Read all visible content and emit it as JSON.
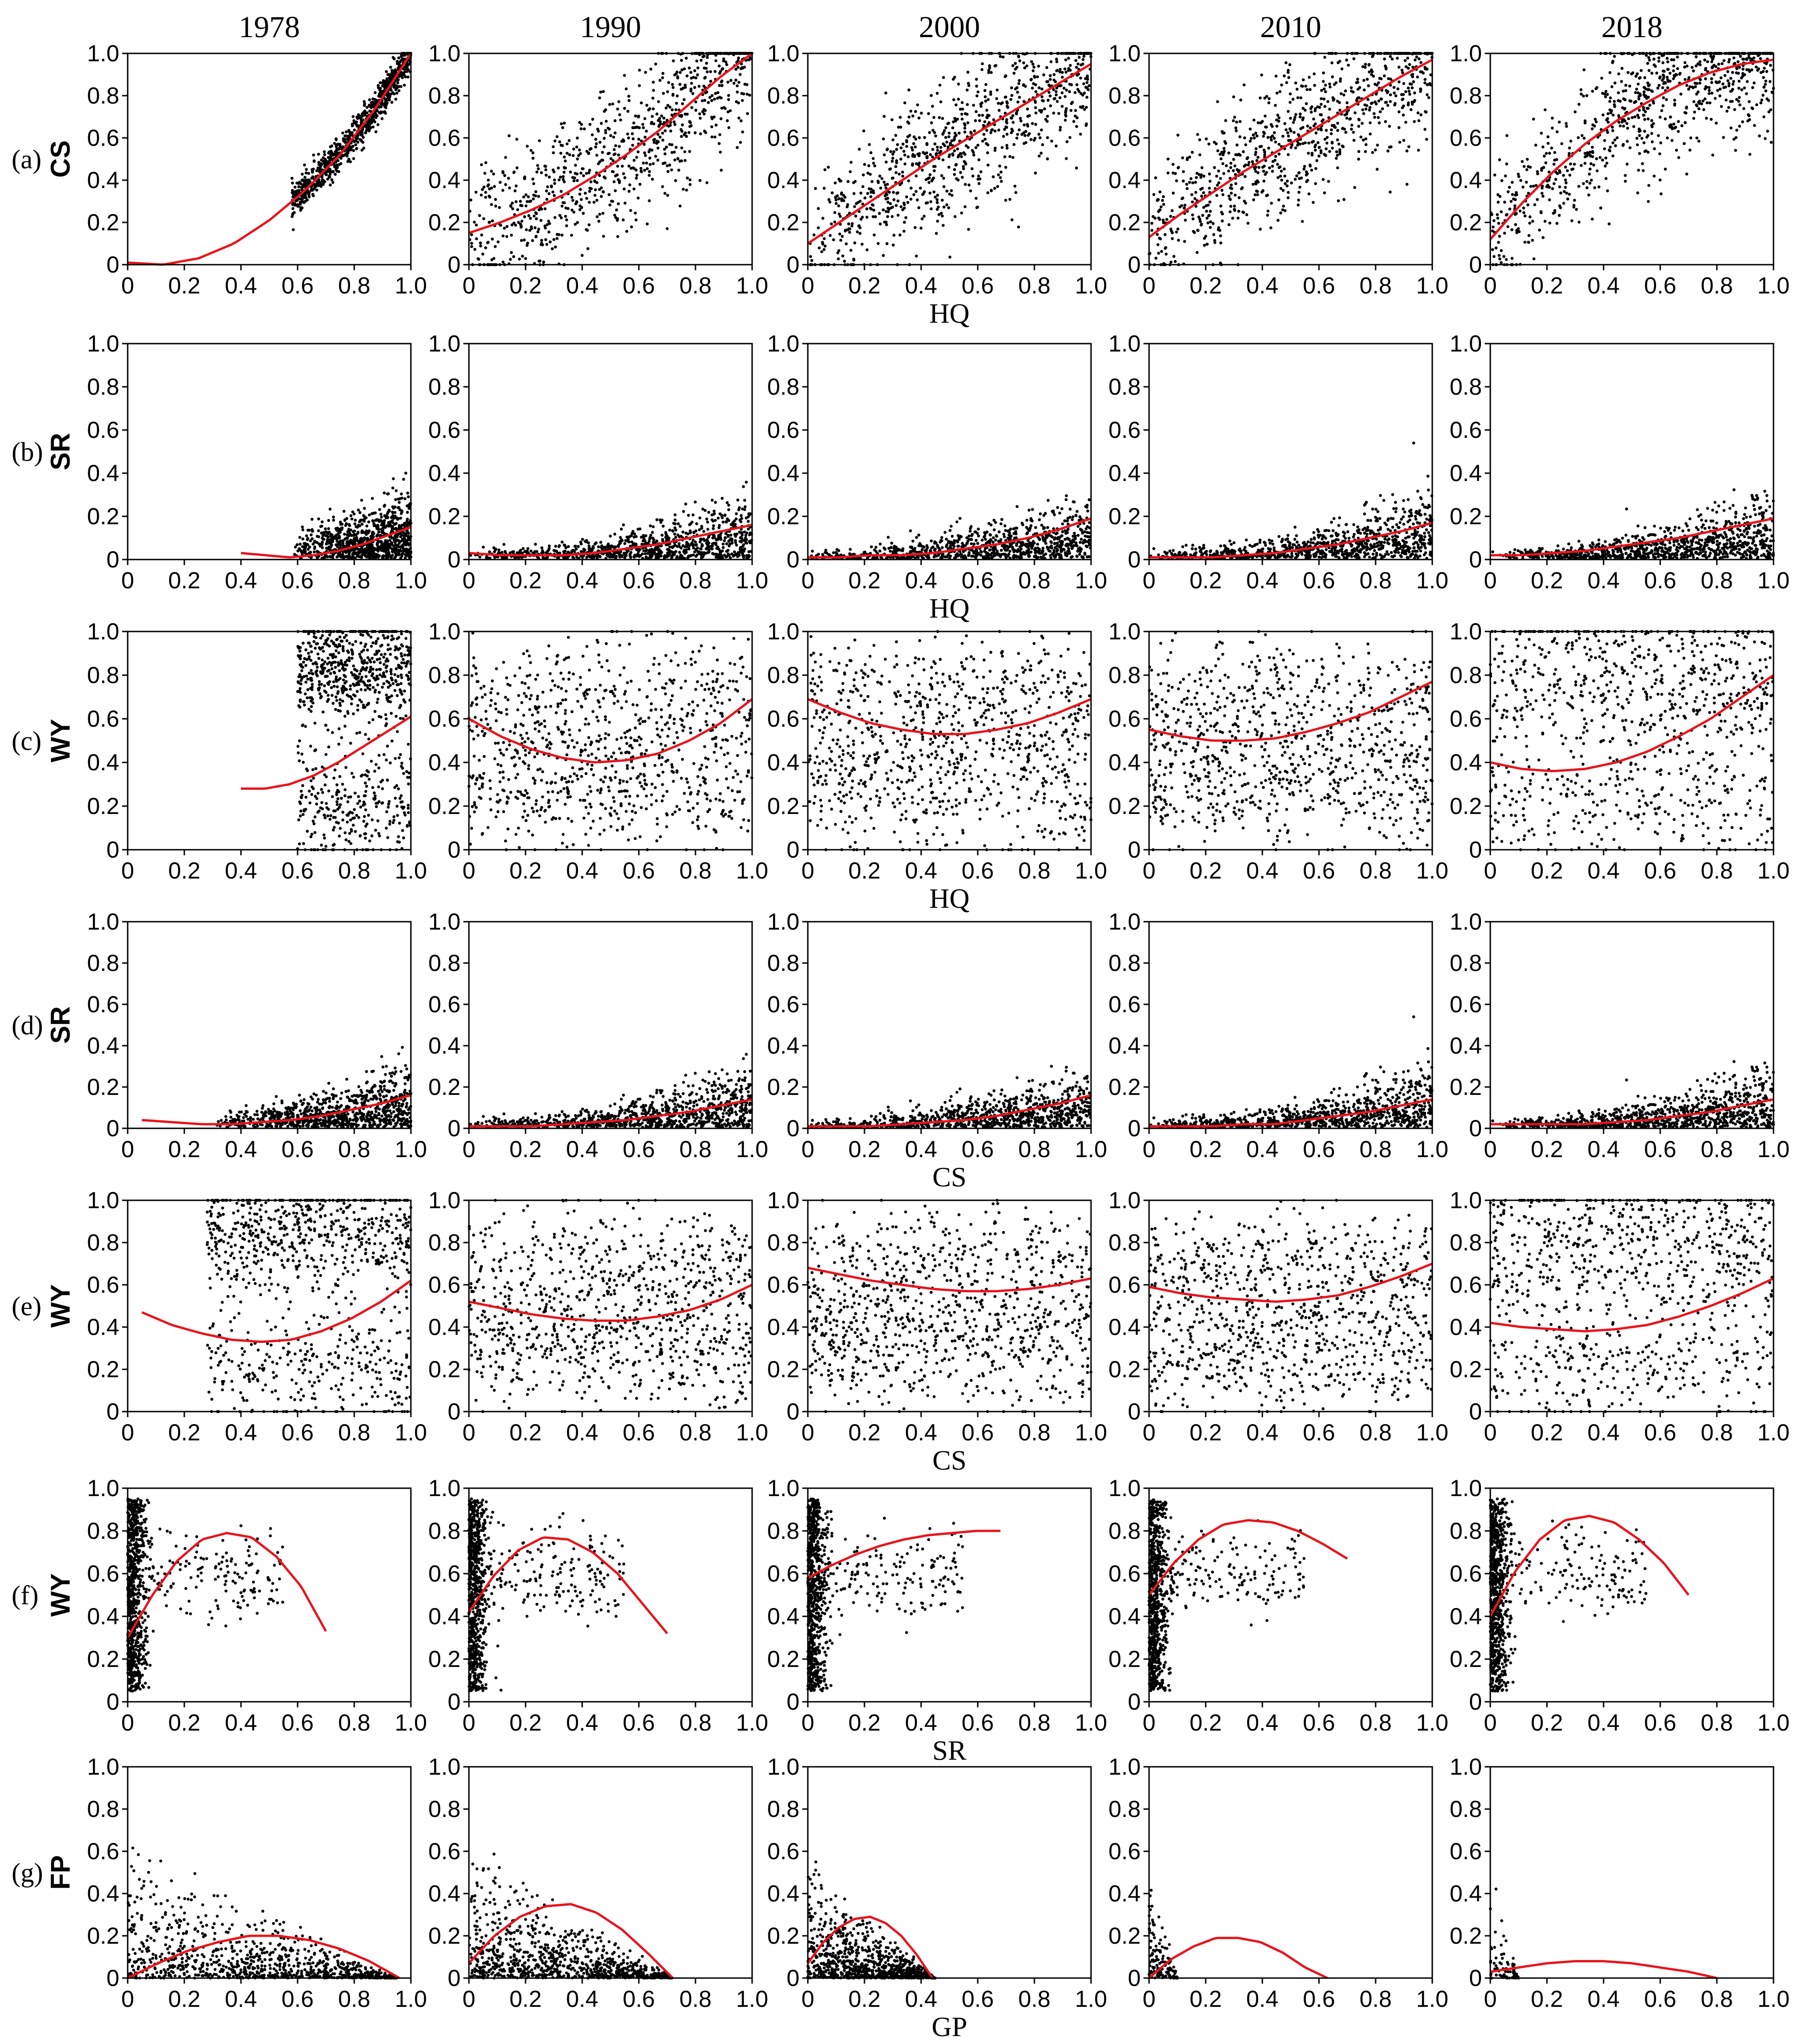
{
  "figure": {
    "years": [
      "1978",
      "1990",
      "2000",
      "2010",
      "2018"
    ],
    "rows": [
      {
        "id": "a",
        "label": "(a)",
        "y": "CS",
        "x": "HQ"
      },
      {
        "id": "b",
        "label": "(b)",
        "y": "SR",
        "x": "HQ"
      },
      {
        "id": "c",
        "label": "(c)",
        "y": "WY",
        "x": "HQ"
      },
      {
        "id": "d",
        "label": "(d)",
        "y": "SR",
        "x": "CS"
      },
      {
        "id": "e",
        "label": "(e)",
        "y": "WY",
        "x": "CS"
      },
      {
        "id": "f",
        "label": "(f)",
        "y": "WY",
        "x": "SR"
      },
      {
        "id": "g",
        "label": "(g)",
        "y": "FP",
        "x": "GP"
      }
    ],
    "tick_labels": [
      "0",
      "0.2",
      "0.4",
      "0.6",
      "0.8",
      "1.0"
    ],
    "colors": {
      "points": "#000000",
      "fit": "#e8141c",
      "axes": "#000000"
    }
  },
  "chart_data": [
    {
      "type": "scatter",
      "panel": "(a) 1978",
      "xlabel": "HQ",
      "ylabel": "CS",
      "xlim": [
        0,
        1
      ],
      "ylim": [
        0,
        1
      ],
      "fit": "quadratic",
      "fit_x": [
        0,
        1
      ],
      "fit_y": [
        0.01,
        0.0,
        0.03,
        0.1,
        0.21,
        0.35,
        0.52,
        0.74,
        1.0
      ],
      "points_note": "dense cluster along fit for HQ 0.6-1.0"
    },
    {
      "type": "scatter",
      "panel": "(a) 1990",
      "xlabel": "HQ",
      "ylabel": "CS",
      "xlim": [
        0,
        1
      ],
      "ylim": [
        0,
        1
      ],
      "fit": "quadratic",
      "fit_x": [
        0,
        1
      ],
      "fit_y": [
        0.15,
        0.2,
        0.26,
        0.33,
        0.42,
        0.52,
        0.63,
        0.76,
        0.89,
        1.0
      ]
    },
    {
      "type": "scatter",
      "panel": "(a) 2000",
      "xlabel": "HQ",
      "ylabel": "CS",
      "xlim": [
        0,
        1
      ],
      "ylim": [
        0,
        1
      ],
      "fit": "quadratic",
      "fit_x": [
        0,
        1
      ],
      "fit_y": [
        0.1,
        0.2,
        0.3,
        0.4,
        0.5,
        0.59,
        0.68,
        0.77,
        0.86,
        0.95
      ]
    },
    {
      "type": "scatter",
      "panel": "(a) 2010",
      "xlabel": "HQ",
      "ylabel": "CS",
      "xlim": [
        0,
        1
      ],
      "ylim": [
        0,
        1
      ],
      "fit": "quadratic",
      "fit_x": [
        0,
        1
      ],
      "fit_y": [
        0.13,
        0.24,
        0.34,
        0.44,
        0.53,
        0.62,
        0.71,
        0.8,
        0.89,
        0.97
      ]
    },
    {
      "type": "scatter",
      "panel": "(a) 2018",
      "xlabel": "HQ",
      "ylabel": "CS",
      "xlim": [
        0,
        1
      ],
      "ylim": [
        0,
        1
      ],
      "fit": "quadratic",
      "fit_x": [
        0,
        1
      ],
      "fit_y": [
        0.12,
        0.29,
        0.44,
        0.57,
        0.68,
        0.77,
        0.85,
        0.91,
        0.95,
        0.97
      ]
    },
    {
      "type": "scatter",
      "panel": "(b) 1978",
      "xlabel": "HQ",
      "ylabel": "SR",
      "xlim": [
        0,
        1
      ],
      "ylim": [
        0,
        1
      ],
      "fit": "quadratic",
      "fit_x": [
        0.4,
        1
      ],
      "fit_y": [
        0.03,
        0.02,
        0.01,
        0.02,
        0.04,
        0.07,
        0.11,
        0.15
      ]
    },
    {
      "type": "scatter",
      "panel": "(b) 1990",
      "xlabel": "HQ",
      "ylabel": "SR",
      "xlim": [
        0,
        1
      ],
      "ylim": [
        0,
        1
      ],
      "fit": "quadratic",
      "fit_x": [
        0,
        1
      ],
      "fit_y": [
        0.03,
        0.02,
        0.02,
        0.02,
        0.03,
        0.05,
        0.07,
        0.1,
        0.13,
        0.16
      ]
    },
    {
      "type": "scatter",
      "panel": "(b) 2000",
      "xlabel": "HQ",
      "ylabel": "SR",
      "xlim": [
        0,
        1
      ],
      "ylim": [
        0,
        1
      ],
      "fit": "quadratic",
      "fit_x": [
        0,
        1
      ],
      "fit_y": [
        0.01,
        0.01,
        0.02,
        0.02,
        0.03,
        0.05,
        0.07,
        0.1,
        0.14,
        0.19
      ]
    },
    {
      "type": "scatter",
      "panel": "(b) 2010",
      "xlabel": "HQ",
      "ylabel": "SR",
      "xlim": [
        0,
        1
      ],
      "ylim": [
        0,
        1
      ],
      "fit": "quadratic",
      "fit_x": [
        0,
        1
      ],
      "fit_y": [
        0.01,
        0.01,
        0.01,
        0.02,
        0.03,
        0.05,
        0.07,
        0.1,
        0.13,
        0.17
      ]
    },
    {
      "type": "scatter",
      "panel": "(b) 2018",
      "xlabel": "HQ",
      "ylabel": "SR",
      "xlim": [
        0,
        1
      ],
      "ylim": [
        0,
        1
      ],
      "fit": "quadratic",
      "fit_x": [
        0,
        1
      ],
      "fit_y": [
        0.02,
        0.02,
        0.03,
        0.04,
        0.06,
        0.08,
        0.1,
        0.13,
        0.16,
        0.19
      ]
    },
    {
      "type": "scatter",
      "panel": "(c) 1978",
      "xlabel": "HQ",
      "ylabel": "WY",
      "xlim": [
        0,
        1
      ],
      "ylim": [
        0,
        1
      ],
      "fit": "quadratic",
      "fit_x": [
        0.4,
        1
      ],
      "fit_y": [
        0.28,
        0.28,
        0.3,
        0.34,
        0.4,
        0.47,
        0.54,
        0.61
      ]
    },
    {
      "type": "scatter",
      "panel": "(c) 1990",
      "xlabel": "HQ",
      "ylabel": "WY",
      "xlim": [
        0,
        1
      ],
      "ylim": [
        0,
        1
      ],
      "fit": "quadratic",
      "fit_x": [
        0,
        1
      ],
      "fit_y": [
        0.6,
        0.52,
        0.46,
        0.42,
        0.4,
        0.41,
        0.44,
        0.5,
        0.58,
        0.69
      ]
    },
    {
      "type": "scatter",
      "panel": "(c) 2000",
      "xlabel": "HQ",
      "ylabel": "WY",
      "xlim": [
        0,
        1
      ],
      "ylim": [
        0,
        1
      ],
      "fit": "quadratic",
      "fit_x": [
        0,
        1
      ],
      "fit_y": [
        0.69,
        0.63,
        0.58,
        0.55,
        0.53,
        0.53,
        0.55,
        0.58,
        0.63,
        0.69
      ]
    },
    {
      "type": "scatter",
      "panel": "(c) 2010",
      "xlabel": "HQ",
      "ylabel": "WY",
      "xlim": [
        0,
        1
      ],
      "ylim": [
        0,
        1
      ],
      "fit": "quadratic",
      "fit_x": [
        0,
        1
      ],
      "fit_y": [
        0.55,
        0.52,
        0.5,
        0.5,
        0.51,
        0.54,
        0.58,
        0.63,
        0.7,
        0.77
      ]
    },
    {
      "type": "scatter",
      "panel": "(c) 2018",
      "xlabel": "HQ",
      "ylabel": "WY",
      "xlim": [
        0,
        1
      ],
      "ylim": [
        0,
        1
      ],
      "fit": "quadratic",
      "fit_x": [
        0,
        1
      ],
      "fit_y": [
        0.4,
        0.37,
        0.36,
        0.37,
        0.4,
        0.45,
        0.52,
        0.6,
        0.7,
        0.8
      ]
    },
    {
      "type": "scatter",
      "panel": "(d) 1978",
      "xlabel": "CS",
      "ylabel": "SR",
      "xlim": [
        0,
        1
      ],
      "ylim": [
        0,
        1
      ],
      "fit": "quadratic",
      "fit_x": [
        0.05,
        1
      ],
      "fit_y": [
        0.04,
        0.03,
        0.02,
        0.02,
        0.03,
        0.04,
        0.06,
        0.09,
        0.12,
        0.16
      ]
    },
    {
      "type": "scatter",
      "panel": "(d) 1990",
      "xlabel": "CS",
      "ylabel": "SR",
      "xlim": [
        0,
        1
      ],
      "ylim": [
        0,
        1
      ],
      "fit": "quadratic",
      "fit_x": [
        0,
        1
      ],
      "fit_y": [
        0.01,
        0.01,
        0.01,
        0.02,
        0.03,
        0.04,
        0.06,
        0.08,
        0.11,
        0.14
      ]
    },
    {
      "type": "scatter",
      "panel": "(d) 2000",
      "xlabel": "CS",
      "ylabel": "SR",
      "xlim": [
        0,
        1
      ],
      "ylim": [
        0,
        1
      ],
      "fit": "quadratic",
      "fit_x": [
        0,
        1
      ],
      "fit_y": [
        0.01,
        0.01,
        0.01,
        0.02,
        0.03,
        0.04,
        0.06,
        0.09,
        0.12,
        0.16
      ]
    },
    {
      "type": "scatter",
      "panel": "(d) 2010",
      "xlabel": "CS",
      "ylabel": "SR",
      "xlim": [
        0,
        1
      ],
      "ylim": [
        0,
        1
      ],
      "fit": "quadratic",
      "fit_x": [
        0,
        1
      ],
      "fit_y": [
        0.01,
        0.01,
        0.01,
        0.02,
        0.02,
        0.04,
        0.06,
        0.08,
        0.11,
        0.14
      ]
    },
    {
      "type": "scatter",
      "panel": "(d) 2018",
      "xlabel": "CS",
      "ylabel": "SR",
      "xlim": [
        0,
        1
      ],
      "ylim": [
        0,
        1
      ],
      "fit": "quadratic",
      "fit_x": [
        0,
        1
      ],
      "fit_y": [
        0.02,
        0.02,
        0.02,
        0.02,
        0.03,
        0.04,
        0.06,
        0.08,
        0.11,
        0.14
      ]
    },
    {
      "type": "scatter",
      "panel": "(e) 1978",
      "xlabel": "CS",
      "ylabel": "WY",
      "xlim": [
        0,
        1
      ],
      "ylim": [
        0,
        1
      ],
      "fit": "quadratic",
      "fit_x": [
        0.05,
        1
      ],
      "fit_y": [
        0.47,
        0.41,
        0.37,
        0.34,
        0.33,
        0.34,
        0.38,
        0.44,
        0.52,
        0.62
      ]
    },
    {
      "type": "scatter",
      "panel": "(e) 1990",
      "xlabel": "CS",
      "ylabel": "WY",
      "xlim": [
        0,
        1
      ],
      "ylim": [
        0,
        1
      ],
      "fit": "quadratic",
      "fit_x": [
        0,
        1
      ],
      "fit_y": [
        0.52,
        0.49,
        0.46,
        0.44,
        0.43,
        0.43,
        0.45,
        0.48,
        0.53,
        0.6
      ]
    },
    {
      "type": "scatter",
      "panel": "(e) 2000",
      "xlabel": "CS",
      "ylabel": "WY",
      "xlim": [
        0,
        1
      ],
      "ylim": [
        0,
        1
      ],
      "fit": "quadratic",
      "fit_x": [
        0,
        1
      ],
      "fit_y": [
        0.68,
        0.65,
        0.62,
        0.6,
        0.58,
        0.57,
        0.57,
        0.58,
        0.6,
        0.63
      ]
    },
    {
      "type": "scatter",
      "panel": "(e) 2010",
      "xlabel": "CS",
      "ylabel": "WY",
      "xlim": [
        0,
        1
      ],
      "ylim": [
        0,
        1
      ],
      "fit": "quadratic",
      "fit_x": [
        0,
        1
      ],
      "fit_y": [
        0.59,
        0.56,
        0.54,
        0.53,
        0.52,
        0.53,
        0.55,
        0.59,
        0.64,
        0.7
      ]
    },
    {
      "type": "scatter",
      "panel": "(e) 2018",
      "xlabel": "CS",
      "ylabel": "WY",
      "xlim": [
        0,
        1
      ],
      "ylim": [
        0,
        1
      ],
      "fit": "quadratic",
      "fit_x": [
        0,
        1
      ],
      "fit_y": [
        0.42,
        0.4,
        0.39,
        0.38,
        0.39,
        0.41,
        0.45,
        0.5,
        0.56,
        0.63
      ]
    },
    {
      "type": "scatter",
      "panel": "(f) 1978",
      "xlabel": "SR",
      "ylabel": "WY",
      "xlim": [
        0,
        1
      ],
      "ylim": [
        0,
        1
      ],
      "fit": "quadratic",
      "fit_x": [
        0,
        0.7
      ],
      "fit_y": [
        0.3,
        0.5,
        0.66,
        0.76,
        0.79,
        0.77,
        0.68,
        0.54,
        0.33
      ]
    },
    {
      "type": "scatter",
      "panel": "(f) 1990",
      "xlabel": "SR",
      "ylabel": "WY",
      "xlim": [
        0,
        1
      ],
      "ylim": [
        0,
        1
      ],
      "fit": "quadratic",
      "fit_x": [
        0,
        0.7
      ],
      "fit_y": [
        0.42,
        0.59,
        0.71,
        0.77,
        0.76,
        0.7,
        0.6,
        0.46,
        0.32
      ]
    },
    {
      "type": "scatter",
      "panel": "(f) 2000",
      "xlabel": "SR",
      "ylabel": "WY",
      "xlim": [
        0,
        1
      ],
      "ylim": [
        0,
        1
      ],
      "fit": "quadratic",
      "fit_x": [
        0,
        0.68
      ],
      "fit_y": [
        0.58,
        0.64,
        0.69,
        0.73,
        0.76,
        0.78,
        0.79,
        0.8,
        0.8
      ]
    },
    {
      "type": "scatter",
      "panel": "(f) 2010",
      "xlabel": "SR",
      "ylabel": "WY",
      "xlim": [
        0,
        1
      ],
      "ylim": [
        0,
        1
      ],
      "fit": "quadratic",
      "fit_x": [
        0,
        0.7
      ],
      "fit_y": [
        0.5,
        0.65,
        0.76,
        0.83,
        0.85,
        0.84,
        0.8,
        0.74,
        0.67
      ]
    },
    {
      "type": "scatter",
      "panel": "(f) 2018",
      "xlabel": "SR",
      "ylabel": "WY",
      "xlim": [
        0,
        1
      ],
      "ylim": [
        0,
        1
      ],
      "fit": "quadratic",
      "fit_x": [
        0,
        0.7
      ],
      "fit_y": [
        0.4,
        0.61,
        0.76,
        0.85,
        0.87,
        0.84,
        0.76,
        0.65,
        0.5
      ]
    },
    {
      "type": "scatter",
      "panel": "(g) 1978",
      "xlabel": "GP",
      "ylabel": "FP",
      "xlim": [
        0,
        1
      ],
      "ylim": [
        0,
        1
      ],
      "fit": "quadratic",
      "fit_x": [
        0,
        0.96
      ],
      "fit_y": [
        0.0,
        0.07,
        0.13,
        0.17,
        0.2,
        0.2,
        0.18,
        0.14,
        0.08,
        0.0
      ]
    },
    {
      "type": "scatter",
      "panel": "(g) 1990",
      "xlabel": "GP",
      "ylabel": "FP",
      "xlim": [
        0,
        1
      ],
      "ylim": [
        0,
        1
      ],
      "fit": "quadratic",
      "fit_x": [
        0,
        0.72
      ],
      "fit_y": [
        0.07,
        0.2,
        0.29,
        0.34,
        0.35,
        0.31,
        0.23,
        0.12,
        0.0
      ]
    },
    {
      "type": "scatter",
      "panel": "(g) 2000",
      "xlabel": "GP",
      "ylabel": "FP",
      "xlim": [
        0,
        1
      ],
      "ylim": [
        0,
        1
      ],
      "fit": "quadratic",
      "fit_x": [
        0,
        0.44
      ],
      "fit_y": [
        0.07,
        0.17,
        0.24,
        0.28,
        0.29,
        0.26,
        0.2,
        0.11,
        0.0
      ]
    },
    {
      "type": "scatter",
      "panel": "(g) 2010",
      "xlabel": "GP",
      "ylabel": "FP",
      "xlim": [
        0,
        1
      ],
      "ylim": [
        0,
        1
      ],
      "fit": "quadratic",
      "fit_x": [
        0,
        0.63
      ],
      "fit_y": [
        0.0,
        0.09,
        0.15,
        0.19,
        0.19,
        0.17,
        0.12,
        0.05,
        0.0
      ]
    },
    {
      "type": "scatter",
      "panel": "(g) 2018",
      "xlabel": "GP",
      "ylabel": "FP",
      "xlim": [
        0,
        1
      ],
      "ylim": [
        0,
        1
      ],
      "fit": "quadratic",
      "fit_x": [
        0,
        0.8
      ],
      "fit_y": [
        0.03,
        0.05,
        0.07,
        0.08,
        0.08,
        0.07,
        0.05,
        0.03,
        0.0
      ]
    }
  ]
}
